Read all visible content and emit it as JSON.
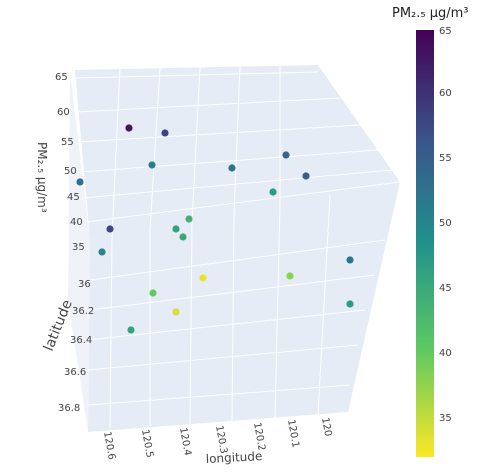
{
  "chart_data": {
    "type": "scatter3d",
    "title": "",
    "axes": {
      "x": {
        "label": "longitude",
        "ticks": [
          "120.6",
          "120.5",
          "120.4",
          "120.3",
          "120.2",
          "120.1",
          "120"
        ]
      },
      "y": {
        "label": "latitude",
        "ticks": [
          "36",
          "36.2",
          "36.4",
          "36.6",
          "36.8"
        ]
      },
      "z": {
        "label": "PM₂.₅ μg/m³",
        "ticks": [
          "65",
          "60",
          "55",
          "50",
          "45",
          "40",
          "35"
        ]
      }
    },
    "colorbar": {
      "title": "PM₂.₅ μg/m³",
      "colorscale": "Viridis (reversed)",
      "range": [
        32,
        65
      ],
      "ticks": [
        "65",
        "60",
        "55",
        "50",
        "45",
        "40",
        "35"
      ]
    },
    "points": [
      {
        "pm25": 63
      },
      {
        "pm25": 58
      },
      {
        "pm25": 53
      },
      {
        "pm25": 51
      },
      {
        "pm25": 52
      },
      {
        "pm25": 54
      },
      {
        "pm25": 55
      },
      {
        "pm25": 47
      },
      {
        "pm25": 58
      },
      {
        "pm25": 50
      },
      {
        "pm25": 44
      },
      {
        "pm25": 46
      },
      {
        "pm25": 45
      },
      {
        "pm25": 33
      },
      {
        "pm25": 40
      },
      {
        "pm25": 38
      },
      {
        "pm25": 34
      },
      {
        "pm25": 46
      },
      {
        "pm25": 52
      },
      {
        "pm25": 47
      }
    ]
  }
}
